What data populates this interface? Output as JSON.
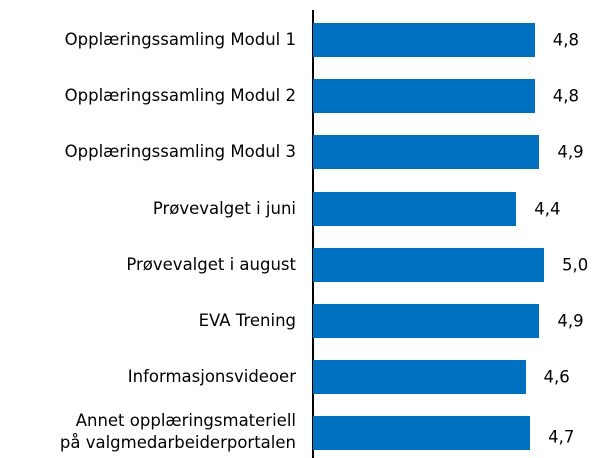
{
  "chart_data": {
    "type": "barh",
    "categories": [
      "Opplæringssamling Modul 1",
      "Opplæringssamling Modul 2",
      "Opplæringssamling Modul 3",
      "Prøvevalget i juni",
      "Prøvevalget i august",
      "EVA Trening",
      "Informasjonsvideoer",
      "Annet opplæringsmateriell\npå valgmedarbeiderportalen"
    ],
    "values": [
      4.8,
      4.8,
      4.9,
      4.4,
      5.0,
      4.9,
      4.6,
      4.7
    ],
    "value_labels": [
      "4,8",
      "4,8",
      "4,9",
      "4,4",
      "5,0",
      "4,9",
      "4,6",
      "4,7"
    ],
    "color": "#0070c0",
    "xlim": [
      0,
      5
    ]
  }
}
